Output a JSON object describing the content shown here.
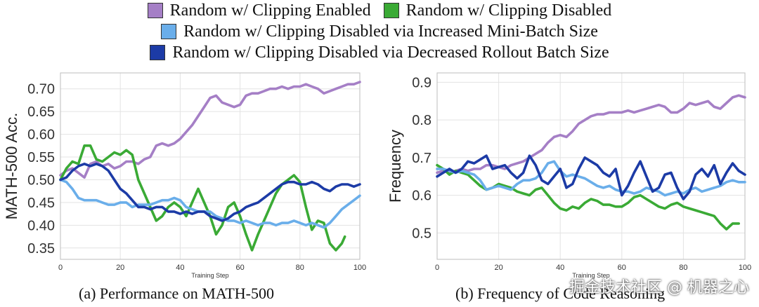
{
  "legend": {
    "items": [
      {
        "label": "Random w/ Clipping Enabled",
        "color": "#a57fc6"
      },
      {
        "label": "Random w/ Clipping Disabled",
        "color": "#3aaa35"
      },
      {
        "label": "Random w/ Clipping Disabled via Increased Mini-Batch Size",
        "color": "#6aaeea"
      },
      {
        "label": "Random w/ Clipping Disabled via Decreased Rollout Batch Size",
        "color": "#1c3ba6"
      }
    ]
  },
  "captions": {
    "left": "(a) Performance on MATH-500",
    "right": "(b) Frequency of Code Reasoning"
  },
  "watermark": "掘金技术社区 @ 机器之心",
  "chart_data": [
    {
      "type": "line",
      "title": "",
      "xlabel": "Training Step",
      "ylabel": "MATH-500 Acc.",
      "xlim": [
        0,
        100
      ],
      "ylim": [
        0.325,
        0.735
      ],
      "xticks": [
        0,
        20,
        40,
        60,
        80,
        100
      ],
      "yticks": [
        0.35,
        0.4,
        0.45,
        0.5,
        0.55,
        0.6,
        0.65,
        0.7
      ],
      "ytick_labels": [
        "0.35",
        "0.40",
        "0.45",
        "0.50",
        "0.55",
        "0.60",
        "0.65",
        "0.70"
      ],
      "grid": true,
      "series": [
        {
          "name": "Random w/ Clipping Enabled",
          "color": "#a57fc6",
          "x": [
            0,
            2,
            4,
            6,
            8,
            10,
            12,
            14,
            16,
            18,
            20,
            22,
            24,
            26,
            28,
            30,
            32,
            34,
            36,
            38,
            40,
            42,
            44,
            46,
            48,
            50,
            52,
            54,
            56,
            58,
            60,
            62,
            64,
            66,
            68,
            70,
            72,
            74,
            76,
            78,
            80,
            82,
            84,
            86,
            88,
            90,
            92,
            94,
            96,
            98,
            100
          ],
          "y": [
            0.51,
            0.52,
            0.525,
            0.515,
            0.505,
            0.535,
            0.54,
            0.53,
            0.535,
            0.525,
            0.53,
            0.54,
            0.54,
            0.535,
            0.545,
            0.55,
            0.575,
            0.58,
            0.575,
            0.58,
            0.59,
            0.605,
            0.62,
            0.64,
            0.66,
            0.68,
            0.685,
            0.67,
            0.665,
            0.66,
            0.665,
            0.685,
            0.69,
            0.69,
            0.695,
            0.7,
            0.7,
            0.705,
            0.7,
            0.705,
            0.705,
            0.71,
            0.705,
            0.7,
            0.69,
            0.695,
            0.7,
            0.705,
            0.71,
            0.71,
            0.715
          ]
        },
        {
          "name": "Random w/ Clipping Disabled",
          "color": "#3aaa35",
          "x": [
            0,
            2,
            4,
            6,
            8,
            10,
            12,
            14,
            16,
            18,
            20,
            22,
            24,
            26,
            28,
            30,
            32,
            34,
            36,
            38,
            40,
            42,
            44,
            46,
            48,
            50,
            52,
            54,
            56,
            58,
            60,
            62,
            64,
            66,
            68,
            70,
            72,
            74,
            76,
            78,
            80,
            82,
            84,
            86,
            88,
            90,
            92,
            94,
            95
          ],
          "y": [
            0.5,
            0.525,
            0.54,
            0.535,
            0.575,
            0.575,
            0.545,
            0.54,
            0.55,
            0.56,
            0.555,
            0.565,
            0.555,
            0.5,
            0.47,
            0.44,
            0.41,
            0.42,
            0.44,
            0.45,
            0.44,
            0.42,
            0.45,
            0.48,
            0.45,
            0.42,
            0.38,
            0.4,
            0.44,
            0.45,
            0.42,
            0.38,
            0.345,
            0.38,
            0.41,
            0.44,
            0.47,
            0.49,
            0.5,
            0.51,
            0.495,
            0.44,
            0.39,
            0.41,
            0.405,
            0.36,
            0.345,
            0.36,
            0.375
          ]
        },
        {
          "name": "Random w/ Clipping Disabled via Increased Mini-Batch Size",
          "color": "#6aaeea",
          "x": [
            0,
            2,
            4,
            6,
            8,
            10,
            12,
            14,
            16,
            18,
            20,
            22,
            24,
            26,
            28,
            30,
            32,
            34,
            36,
            38,
            40,
            42,
            44,
            46,
            48,
            50,
            52,
            54,
            56,
            58,
            60,
            62,
            64,
            66,
            68,
            70,
            72,
            74,
            76,
            78,
            80,
            82,
            84,
            86,
            88,
            90,
            92,
            94,
            96,
            98,
            100
          ],
          "y": [
            0.5,
            0.495,
            0.48,
            0.46,
            0.455,
            0.455,
            0.455,
            0.45,
            0.445,
            0.445,
            0.45,
            0.45,
            0.44,
            0.445,
            0.445,
            0.445,
            0.45,
            0.455,
            0.455,
            0.46,
            0.455,
            0.44,
            0.435,
            0.43,
            0.43,
            0.43,
            0.42,
            0.415,
            0.41,
            0.41,
            0.405,
            0.41,
            0.405,
            0.4,
            0.405,
            0.405,
            0.4,
            0.405,
            0.405,
            0.41,
            0.405,
            0.4,
            0.405,
            0.4,
            0.395,
            0.405,
            0.42,
            0.435,
            0.445,
            0.455,
            0.465
          ]
        },
        {
          "name": "Random w/ Clipping Disabled via Decreased Rollout Batch Size",
          "color": "#1c3ba6",
          "x": [
            0,
            2,
            4,
            6,
            8,
            10,
            12,
            14,
            16,
            18,
            20,
            22,
            24,
            26,
            28,
            30,
            32,
            34,
            36,
            38,
            40,
            42,
            44,
            46,
            48,
            50,
            52,
            54,
            56,
            58,
            60,
            62,
            64,
            66,
            68,
            70,
            72,
            74,
            76,
            78,
            80,
            82,
            84,
            86,
            88,
            90,
            92,
            94,
            96,
            98,
            100
          ],
          "y": [
            0.5,
            0.505,
            0.52,
            0.53,
            0.535,
            0.53,
            0.535,
            0.53,
            0.52,
            0.5,
            0.48,
            0.47,
            0.455,
            0.44,
            0.44,
            0.435,
            0.44,
            0.44,
            0.43,
            0.43,
            0.425,
            0.43,
            0.425,
            0.43,
            0.43,
            0.42,
            0.415,
            0.41,
            0.415,
            0.425,
            0.43,
            0.44,
            0.445,
            0.45,
            0.46,
            0.47,
            0.48,
            0.49,
            0.495,
            0.495,
            0.49,
            0.49,
            0.495,
            0.49,
            0.48,
            0.475,
            0.485,
            0.49,
            0.49,
            0.485,
            0.49
          ]
        }
      ]
    },
    {
      "type": "line",
      "title": "",
      "xlabel": "Training Step",
      "ylabel": "Frequency",
      "xlim": [
        0,
        100
      ],
      "ylim": [
        0.43,
        0.925
      ],
      "xticks": [
        0,
        20,
        40,
        60,
        80,
        100
      ],
      "yticks": [
        0.5,
        0.6,
        0.7,
        0.8,
        0.9
      ],
      "ytick_labels": [
        "0.5",
        "0.6",
        "0.7",
        "0.8",
        "0.9"
      ],
      "grid": true,
      "series": [
        {
          "name": "Random w/ Clipping Enabled",
          "color": "#a57fc6",
          "x": [
            0,
            2,
            4,
            6,
            8,
            10,
            12,
            14,
            16,
            18,
            20,
            22,
            24,
            26,
            28,
            30,
            32,
            34,
            36,
            38,
            40,
            42,
            44,
            46,
            48,
            50,
            52,
            54,
            56,
            58,
            60,
            62,
            64,
            66,
            68,
            70,
            72,
            74,
            76,
            78,
            80,
            82,
            84,
            86,
            88,
            90,
            92,
            94,
            96,
            98,
            100
          ],
          "y": [
            0.66,
            0.665,
            0.66,
            0.665,
            0.67,
            0.665,
            0.67,
            0.67,
            0.68,
            0.68,
            0.675,
            0.67,
            0.68,
            0.685,
            0.69,
            0.7,
            0.71,
            0.72,
            0.74,
            0.755,
            0.76,
            0.755,
            0.77,
            0.79,
            0.8,
            0.81,
            0.815,
            0.815,
            0.82,
            0.82,
            0.82,
            0.825,
            0.82,
            0.825,
            0.83,
            0.835,
            0.84,
            0.835,
            0.82,
            0.82,
            0.83,
            0.845,
            0.84,
            0.845,
            0.85,
            0.835,
            0.83,
            0.845,
            0.86,
            0.865,
            0.86
          ]
        },
        {
          "name": "Random w/ Clipping Disabled",
          "color": "#3aaa35",
          "x": [
            0,
            2,
            4,
            6,
            8,
            10,
            12,
            14,
            16,
            18,
            20,
            22,
            24,
            26,
            28,
            30,
            32,
            34,
            36,
            38,
            40,
            42,
            44,
            46,
            48,
            50,
            52,
            54,
            56,
            58,
            60,
            62,
            64,
            66,
            68,
            70,
            72,
            74,
            76,
            78,
            80,
            82,
            84,
            86,
            88,
            90,
            92,
            94,
            96,
            98
          ],
          "y": [
            0.68,
            0.67,
            0.655,
            0.665,
            0.66,
            0.655,
            0.64,
            0.625,
            0.615,
            0.62,
            0.63,
            0.625,
            0.62,
            0.61,
            0.605,
            0.6,
            0.615,
            0.62,
            0.6,
            0.58,
            0.565,
            0.56,
            0.57,
            0.565,
            0.58,
            0.59,
            0.585,
            0.575,
            0.575,
            0.57,
            0.57,
            0.58,
            0.595,
            0.6,
            0.59,
            0.58,
            0.57,
            0.565,
            0.575,
            0.58,
            0.57,
            0.565,
            0.56,
            0.555,
            0.55,
            0.545,
            0.525,
            0.51,
            0.525,
            0.525
          ]
        },
        {
          "name": "Random w/ Clipping Disabled via Increased Mini-Batch Size",
          "color": "#6aaeea",
          "x": [
            0,
            2,
            4,
            6,
            8,
            10,
            12,
            14,
            16,
            18,
            20,
            22,
            24,
            26,
            28,
            30,
            32,
            34,
            36,
            38,
            40,
            42,
            44,
            46,
            48,
            50,
            52,
            54,
            56,
            58,
            60,
            62,
            64,
            66,
            68,
            70,
            72,
            74,
            76,
            78,
            80,
            82,
            84,
            86,
            88,
            90,
            92,
            94,
            96,
            98,
            100
          ],
          "y": [
            0.67,
            0.67,
            0.665,
            0.66,
            0.665,
            0.66,
            0.655,
            0.64,
            0.615,
            0.62,
            0.625,
            0.62,
            0.615,
            0.63,
            0.64,
            0.64,
            0.645,
            0.66,
            0.685,
            0.69,
            0.665,
            0.65,
            0.655,
            0.65,
            0.645,
            0.635,
            0.625,
            0.62,
            0.625,
            0.615,
            0.61,
            0.61,
            0.605,
            0.61,
            0.62,
            0.615,
            0.61,
            0.6,
            0.605,
            0.61,
            0.605,
            0.615,
            0.62,
            0.61,
            0.615,
            0.62,
            0.625,
            0.635,
            0.64,
            0.635,
            0.635
          ]
        },
        {
          "name": "Random w/ Clipping Disabled via Decreased Rollout Batch Size",
          "color": "#1c3ba6",
          "x": [
            0,
            2,
            4,
            6,
            8,
            10,
            12,
            14,
            16,
            18,
            20,
            22,
            24,
            26,
            28,
            30,
            32,
            34,
            36,
            38,
            40,
            42,
            44,
            46,
            48,
            50,
            52,
            54,
            56,
            58,
            60,
            62,
            64,
            66,
            68,
            70,
            72,
            74,
            76,
            78,
            80,
            82,
            84,
            86,
            88,
            90,
            92,
            94,
            96,
            98,
            100
          ],
          "y": [
            0.65,
            0.66,
            0.67,
            0.66,
            0.67,
            0.69,
            0.685,
            0.695,
            0.705,
            0.67,
            0.675,
            0.68,
            0.66,
            0.645,
            0.66,
            0.705,
            0.68,
            0.64,
            0.63,
            0.65,
            0.67,
            0.62,
            0.63,
            0.67,
            0.7,
            0.69,
            0.68,
            0.66,
            0.65,
            0.67,
            0.6,
            0.625,
            0.66,
            0.69,
            0.65,
            0.61,
            0.62,
            0.655,
            0.66,
            0.62,
            0.59,
            0.61,
            0.655,
            0.67,
            0.65,
            0.68,
            0.63,
            0.66,
            0.685,
            0.665,
            0.655
          ]
        }
      ]
    }
  ]
}
